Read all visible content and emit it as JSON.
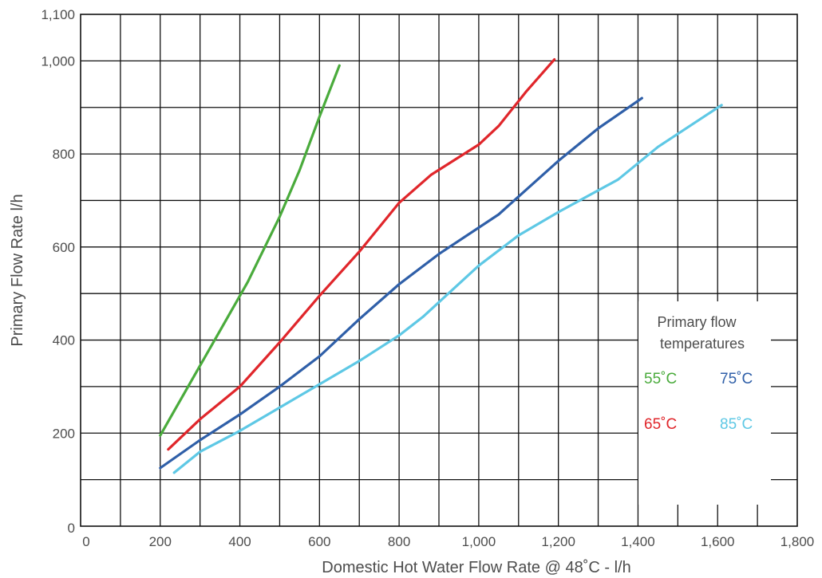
{
  "chart_data": {
    "type": "line",
    "title": "",
    "xlabel": "Domestic Hot Water Flow Rate @ 48˚C - l/h",
    "ylabel": "Primary Flow Rate l/h",
    "xlim": [
      0,
      1800
    ],
    "ylim": [
      0,
      1100
    ],
    "grid": true,
    "x_ticks": [
      {
        "value": 0,
        "label": "0"
      },
      {
        "value": 200,
        "label": "200"
      },
      {
        "value": 400,
        "label": "400"
      },
      {
        "value": 600,
        "label": "600"
      },
      {
        "value": 800,
        "label": "800"
      },
      {
        "value": 1000,
        "label": "1,000"
      },
      {
        "value": 1200,
        "label": "1,200"
      },
      {
        "value": 1400,
        "label": "1,400"
      },
      {
        "value": 1600,
        "label": "1,600"
      },
      {
        "value": 1800,
        "label": "1,800"
      }
    ],
    "y_ticks": [
      {
        "value": 0,
        "label": "0"
      },
      {
        "value": 200,
        "label": "200"
      },
      {
        "value": 400,
        "label": "400"
      },
      {
        "value": 600,
        "label": "600"
      },
      {
        "value": 800,
        "label": "800"
      },
      {
        "value": 1000,
        "label": "1,000"
      },
      {
        "value": 1100,
        "label": "1,100"
      }
    ],
    "legend": {
      "title_lines": [
        "Primary flow",
        "temperatures"
      ],
      "placement": "bottom-right"
    },
    "series": [
      {
        "name": "55˚C",
        "color": "#4aab3c",
        "points": [
          [
            200,
            195
          ],
          [
            250,
            270
          ],
          [
            300,
            345
          ],
          [
            350,
            420
          ],
          [
            380,
            465
          ],
          [
            420,
            525
          ],
          [
            460,
            595
          ],
          [
            500,
            665
          ],
          [
            550,
            765
          ],
          [
            600,
            880
          ],
          [
            650,
            990
          ]
        ]
      },
      {
        "name": "65˚C",
        "color": "#e0262b",
        "points": [
          [
            220,
            165
          ],
          [
            300,
            230
          ],
          [
            400,
            300
          ],
          [
            500,
            395
          ],
          [
            600,
            495
          ],
          [
            700,
            590
          ],
          [
            800,
            695
          ],
          [
            880,
            755
          ],
          [
            1000,
            820
          ],
          [
            1050,
            860
          ],
          [
            1120,
            935
          ],
          [
            1190,
            1003
          ]
        ]
      },
      {
        "name": "75˚C",
        "color": "#2f5fa8",
        "points": [
          [
            200,
            125
          ],
          [
            300,
            185
          ],
          [
            400,
            240
          ],
          [
            500,
            300
          ],
          [
            600,
            365
          ],
          [
            700,
            445
          ],
          [
            800,
            520
          ],
          [
            900,
            585
          ],
          [
            1050,
            670
          ],
          [
            1200,
            785
          ],
          [
            1300,
            855
          ],
          [
            1410,
            920
          ]
        ]
      },
      {
        "name": "85˚C",
        "color": "#5ec8e5",
        "points": [
          [
            235,
            115
          ],
          [
            300,
            160
          ],
          [
            400,
            205
          ],
          [
            500,
            255
          ],
          [
            600,
            305
          ],
          [
            700,
            355
          ],
          [
            800,
            410
          ],
          [
            860,
            450
          ],
          [
            1000,
            560
          ],
          [
            1100,
            625
          ],
          [
            1200,
            675
          ],
          [
            1350,
            745
          ],
          [
            1450,
            815
          ],
          [
            1610,
            905
          ]
        ]
      }
    ]
  }
}
